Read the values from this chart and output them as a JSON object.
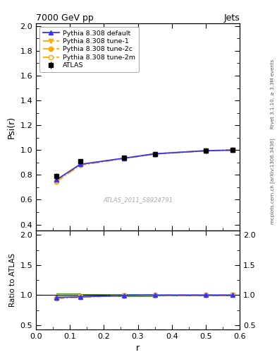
{
  "title": "7000 GeV pp",
  "title_right": "Jets",
  "ylabel_main": "Psi(r)",
  "ylabel_ratio": "Ratio to ATLAS",
  "xlabel": "r",
  "right_label_top": "Rivet 3.1.10, ≥ 3.3M events",
  "right_label_bot": "mcplots.cern.ch [arXiv:1306.3436]",
  "watermark": "ATLAS_2011_S8924791",
  "x_data": [
    0.06,
    0.13,
    0.26,
    0.35,
    0.5,
    0.58
  ],
  "atlas_y": [
    0.79,
    0.91,
    0.94,
    0.97,
    0.995,
    1.0
  ],
  "atlas_yerr": [
    0.025,
    0.015,
    0.012,
    0.008,
    0.005,
    0.003
  ],
  "pythia_default_y": [
    0.76,
    0.885,
    0.935,
    0.97,
    0.995,
    1.0
  ],
  "pythia_tune1_y": [
    0.745,
    0.878,
    0.932,
    0.968,
    0.993,
    1.0
  ],
  "pythia_tune2c_y": [
    0.748,
    0.88,
    0.933,
    0.969,
    0.994,
    1.0
  ],
  "pythia_tune2m_y": [
    0.75,
    0.882,
    0.934,
    0.97,
    0.995,
    1.0
  ],
  "xlim": [
    0.0,
    0.6
  ],
  "ylim_main": [
    0.35,
    2.02
  ],
  "ylim_ratio": [
    0.43,
    2.07
  ],
  "yticks_main": [
    0.4,
    0.6,
    0.8,
    1.0,
    1.2,
    1.4,
    1.6,
    1.8,
    2.0
  ],
  "yticks_ratio": [
    0.5,
    1.0,
    1.5,
    2.0
  ],
  "atlas_color": "#000000",
  "default_color": "#3333ff",
  "tune1_color": "#ffaa00",
  "tune2c_color": "#ffaa00",
  "tune2m_color": "#ffaa00",
  "band_color": "#aaee44",
  "band_alpha": 0.55,
  "legend_fontsize": 6.8,
  "tick_labelsize": 8,
  "axis_labelsize": 9
}
